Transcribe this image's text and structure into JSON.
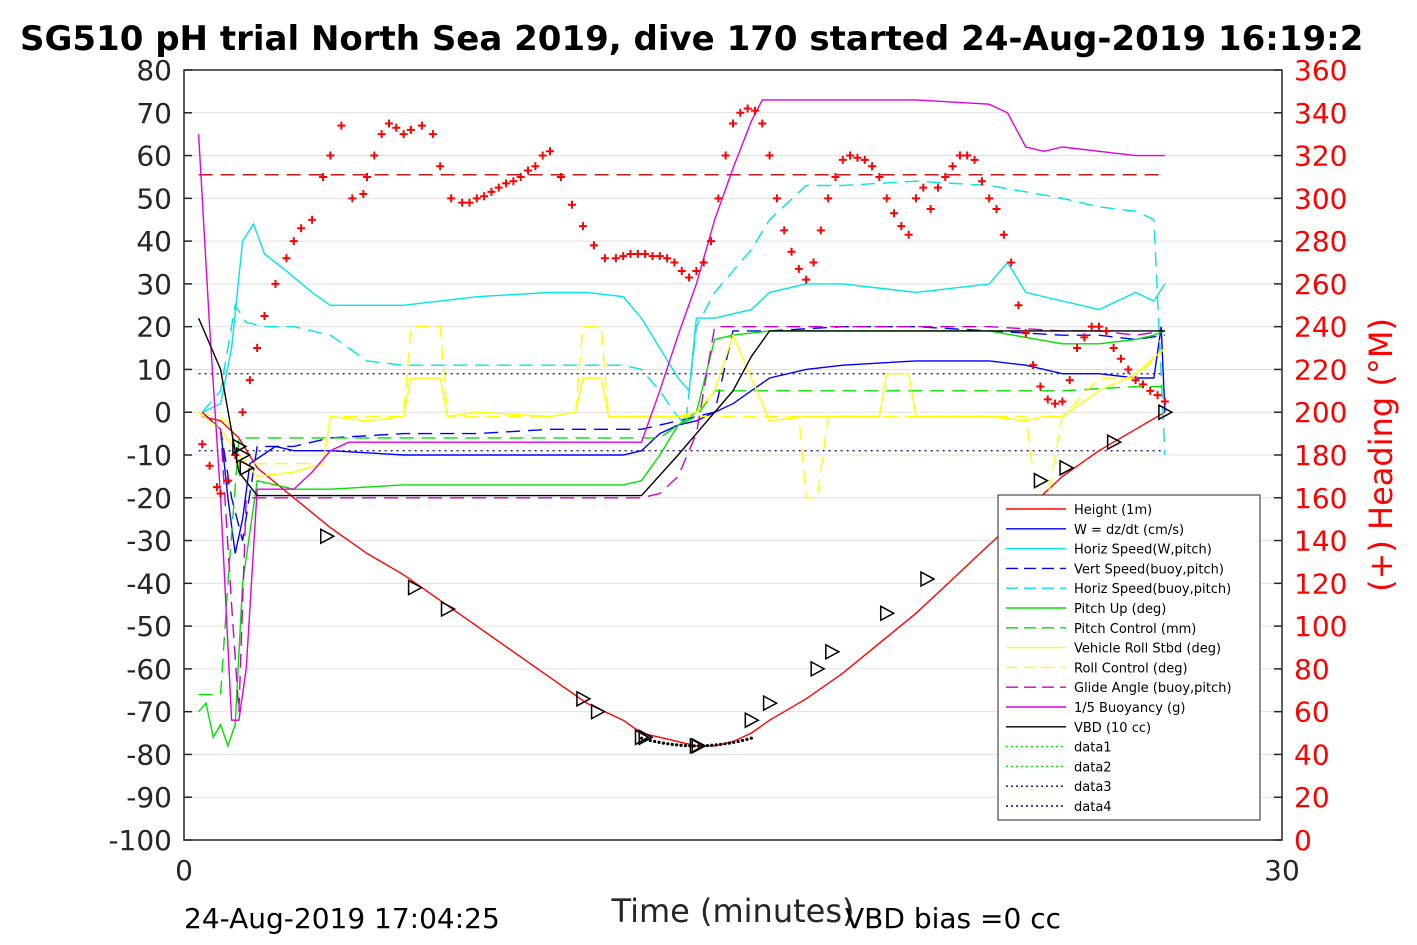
{
  "chart_data": {
    "type": "line",
    "title": "SG510 pH trial North Sea 2019, dive 170 started 24-Aug-2019 16:19:2",
    "xlabel": "Time (minutes)",
    "ylabel_right": "(+) Heading (°M)",
    "footer_left": "24-Aug-2019 17:04:25",
    "footer_right": "VBD bias =0 cc",
    "xlim": [
      0,
      30
    ],
    "ylim": [
      -100,
      80
    ],
    "ylim_right": [
      0,
      360
    ],
    "x_ticks": [
      "0",
      "30"
    ],
    "y_ticks": [
      "80",
      "70",
      "60",
      "50",
      "40",
      "30",
      "20",
      "10",
      "0",
      "-10",
      "-20",
      "-30",
      "-40",
      "-50",
      "-60",
      "-70",
      "-80",
      "-90",
      "-100"
    ],
    "y_ticks_right": [
      "360",
      "340",
      "320",
      "300",
      "280",
      "260",
      "240",
      "220",
      "200",
      "180",
      "160",
      "140",
      "120",
      "100",
      "80",
      "60",
      "40",
      "20",
      "0"
    ],
    "grid": true,
    "legend_position": "bottom-right",
    "series": [
      {
        "name": "Height (1m)",
        "color": "#ff0000",
        "style": "solid",
        "x": [
          0.5,
          1.0,
          1.5,
          2,
          3,
          4,
          5,
          6,
          7,
          8,
          9,
          10,
          11,
          12,
          12.5,
          13,
          13.5,
          14,
          14.5,
          15,
          15.5,
          16,
          17,
          18,
          19,
          20,
          21,
          22,
          23,
          24,
          25,
          26,
          26.8
        ],
        "y": [
          -1,
          -2,
          -6,
          -13,
          -20,
          -27,
          -33,
          -38,
          -44,
          -50,
          -56,
          -62,
          -68,
          -72,
          -75,
          -76,
          -77,
          -78,
          -78,
          -77,
          -75,
          -72,
          -67,
          -61,
          -54,
          -47,
          -39,
          -31,
          -23,
          -15,
          -9,
          -4,
          0
        ]
      },
      {
        "name": "W = dz/dt (cm/s)",
        "color": "#0000ff",
        "style": "solid",
        "x": [
          0.5,
          1.0,
          1.2,
          1.4,
          1.6,
          1.8,
          2.5,
          3,
          4,
          6,
          8,
          10,
          12,
          12.5,
          13,
          13.5,
          14,
          14.5,
          15,
          15.5,
          16,
          17,
          18,
          20,
          22,
          23,
          24,
          25,
          26,
          26.5,
          26.7,
          26.8
        ],
        "y": [
          0,
          -4,
          -20,
          -33,
          -25,
          -12,
          -8,
          -9,
          -9,
          -10,
          -10,
          -10,
          -10,
          -9,
          -5,
          -3,
          -2,
          0,
          2,
          5,
          8,
          10,
          11,
          12,
          12,
          11,
          9,
          9,
          8,
          8,
          20,
          0
        ]
      },
      {
        "name": "Horiz Speed(W,pitch)",
        "color": "#00e5e5",
        "style": "solid",
        "x": [
          0.5,
          1.0,
          1.3,
          1.6,
          1.9,
          2.2,
          2.8,
          3.5,
          4,
          5,
          6,
          8,
          10,
          11,
          12,
          12.5,
          13,
          13.5,
          13.8,
          14,
          14.5,
          15,
          15.5,
          16,
          17,
          18,
          20,
          22,
          22.5,
          23,
          24,
          25,
          26,
          26.5,
          26.8
        ],
        "y": [
          0,
          2,
          15,
          40,
          44,
          37,
          33,
          28,
          25,
          25,
          25,
          27,
          28,
          28,
          27,
          22,
          15,
          8,
          5,
          22,
          22,
          23,
          24,
          28,
          30,
          30,
          28,
          30,
          35,
          28,
          26,
          24,
          28,
          26,
          30
        ]
      },
      {
        "name": "Vert Speed(buoy,pitch)",
        "color": "#0000ff",
        "style": "dashed",
        "x": [
          0.5,
          1.0,
          1.3,
          1.6,
          2,
          3,
          4,
          6,
          8,
          10,
          12,
          12.5,
          13,
          13.5,
          14,
          14.5,
          15,
          16,
          18,
          20,
          22,
          24,
          25,
          26,
          26.8
        ],
        "y": [
          0,
          -4,
          -20,
          -30,
          -8,
          -8,
          -6,
          -5,
          -5,
          -4,
          -4,
          -4,
          -3,
          -2,
          -1,
          0,
          19,
          19,
          20,
          20,
          19,
          18,
          18,
          17,
          18
        ]
      },
      {
        "name": "Horiz Speed(buoy,pitch)",
        "color": "#00e5e5",
        "style": "dashed",
        "x": [
          0.5,
          1.0,
          1.4,
          1.7,
          2.2,
          3,
          4,
          5,
          6,
          8,
          10,
          12,
          12.5,
          13,
          13.4,
          13.7,
          14,
          14.5,
          15,
          15.5,
          16,
          17,
          18,
          20,
          22,
          24,
          25,
          26,
          26.5,
          26.8
        ],
        "y": [
          0,
          5,
          25,
          21,
          20,
          20,
          18,
          12,
          11,
          11,
          11,
          11,
          10,
          5,
          0,
          -3,
          20,
          28,
          33,
          38,
          45,
          53,
          53,
          54,
          53,
          50,
          48,
          47,
          45,
          -10
        ]
      },
      {
        "name": "Pitch Up (deg)",
        "color": "#00e000",
        "style": "solid",
        "x": [
          0.4,
          0.6,
          0.8,
          1.0,
          1.2,
          1.4,
          1.6,
          2,
          3,
          4,
          6,
          8,
          10,
          12,
          12.5,
          13,
          13.5,
          14,
          14.5,
          15,
          16,
          18,
          20,
          22,
          24,
          25,
          26,
          26.5,
          26.8
        ],
        "y": [
          -70,
          -68,
          -76,
          -73,
          -78,
          -73,
          -40,
          -16,
          -18,
          -18,
          -17,
          -17,
          -17,
          -17,
          -16,
          -10,
          -3,
          0,
          17,
          18,
          19,
          19,
          19,
          19,
          16,
          16,
          17,
          18,
          19
        ]
      },
      {
        "name": "Pitch Control (mm)",
        "color": "#00e000",
        "style": "dashed",
        "x": [
          0.4,
          1.0,
          1.2,
          1.5,
          2,
          4,
          6,
          8,
          10,
          12,
          13,
          13.5,
          14,
          14.5,
          15,
          16,
          18,
          20,
          22,
          24,
          26,
          26.8
        ],
        "y": [
          -66,
          -66,
          -40,
          -6,
          -6,
          -6,
          -6,
          -6,
          -6,
          -6,
          -6,
          -3,
          -1,
          5,
          5,
          5,
          5,
          5,
          5,
          5,
          6,
          6
        ]
      },
      {
        "name": "Vehicle Roll Stbd (deg)",
        "color": "#ffff00",
        "style": "solid",
        "x": [
          0.4,
          1.0,
          1.5,
          2,
          3,
          3.8,
          4.0,
          5,
          6,
          6.2,
          6.4,
          7,
          7.2,
          8,
          10,
          10.7,
          10.9,
          11.4,
          11.6,
          12,
          13,
          13.5,
          14,
          14.5,
          15,
          15.5,
          16,
          17,
          18,
          19,
          19.2,
          19.8,
          20,
          21,
          22,
          23,
          23.5,
          24,
          25,
          26,
          26.8
        ],
        "y": [
          0,
          -4,
          -10,
          -15,
          -14,
          -12,
          -1,
          -2,
          -1,
          8,
          8,
          8,
          -1,
          0,
          -1,
          0,
          8,
          8,
          -1,
          -1,
          -1,
          -1,
          0,
          5,
          18,
          8,
          -2,
          -1,
          -1,
          -1,
          9,
          9,
          -1,
          -1,
          -1,
          -2,
          -1,
          -1,
          5,
          9,
          15
        ]
      },
      {
        "name": "Roll Control (deg)",
        "color": "#ffff00",
        "style": "dashed",
        "x": [
          0.4,
          1.2,
          1.5,
          2,
          3,
          3.8,
          4.0,
          5,
          6,
          6.2,
          6.4,
          7,
          7.2,
          8,
          10,
          10.7,
          10.9,
          11.4,
          11.6,
          12,
          13,
          14,
          15,
          16,
          16.8,
          17,
          17.3,
          17.6,
          18,
          19,
          20,
          22,
          23,
          23.3,
          23.6,
          24,
          25,
          26,
          26.8
        ],
        "y": [
          0,
          -2,
          -12,
          -12,
          -12,
          -12,
          -1,
          -1,
          -1,
          20,
          20,
          20,
          -1,
          -1,
          -1,
          0,
          20,
          20,
          -1,
          -1,
          -1,
          -1,
          -1,
          -1,
          -1,
          -20,
          -20,
          -1,
          -1,
          -1,
          -1,
          -1,
          -1,
          -20,
          -20,
          -1,
          8,
          8,
          15
        ]
      },
      {
        "name": "Glide Angle (buoy,pitch)",
        "color": "#cc00cc",
        "style": "dashed",
        "x": [
          0.5,
          1.0,
          1.3,
          1.5,
          1.7,
          2,
          3,
          4,
          6,
          8,
          10,
          12,
          12.5,
          13,
          13.5,
          14,
          14.5,
          15,
          16,
          18,
          20,
          22,
          24,
          25,
          26,
          26.8
        ],
        "y": [
          0,
          -4,
          -45,
          -70,
          -20,
          -20,
          -20,
          -20,
          -20,
          -20,
          -20,
          -20,
          -20,
          -19,
          -15,
          -5,
          20,
          20,
          20,
          20,
          20,
          20,
          19,
          19,
          18,
          19
        ]
      },
      {
        "name": "1/5 Buoyancy (g)",
        "color": "#e000e0",
        "style": "solid",
        "x": [
          0.4,
          0.7,
          1.0,
          1.3,
          1.5,
          1.7,
          2,
          3,
          3.5,
          4,
          4.5,
          5,
          6,
          8,
          10,
          12,
          12.5,
          13,
          13.5,
          14,
          14.5,
          15,
          15.5,
          15.8,
          16,
          18,
          20,
          22,
          22.5,
          23,
          23.5,
          24,
          25,
          26,
          26.8
        ],
        "y": [
          65,
          20,
          -20,
          -72,
          -72,
          -60,
          -18,
          -18,
          -14,
          -9,
          -7,
          -7,
          -7,
          -7,
          -7,
          -7,
          -7,
          5,
          18,
          30,
          45,
          57,
          68,
          73,
          73,
          73,
          73,
          72,
          70,
          62,
          61,
          62,
          61,
          60,
          60
        ]
      },
      {
        "name": "VBD (10 cc)",
        "color": "#000000",
        "style": "solid",
        "x": [
          0.4,
          1.0,
          1.5,
          2,
          4,
          6,
          8,
          10,
          12,
          12.5,
          13.5,
          14,
          14.5,
          15,
          15.5,
          16,
          18,
          20,
          22,
          24,
          26,
          26.8
        ],
        "y": [
          22,
          10,
          -14,
          -19.5,
          -19.5,
          -19.5,
          -19.5,
          -19.5,
          -19.5,
          -19.5,
          -10,
          -5,
          0,
          5,
          13,
          19,
          19,
          19,
          19,
          19,
          19,
          19
        ]
      },
      {
        "name": "data1",
        "color": "#00e000",
        "style": "dotted",
        "x": [],
        "y": []
      },
      {
        "name": "data2",
        "color": "#00e000",
        "style": "dotted",
        "x": [],
        "y": []
      },
      {
        "name": "data3",
        "color": "#000080",
        "style": "dotted",
        "x": [],
        "y": []
      },
      {
        "name": "data4",
        "color": "#000080",
        "style": "dotted",
        "x": [],
        "y": []
      }
    ],
    "reference_lines": [
      {
        "axis": "right",
        "value": 311,
        "color": "#c00000",
        "style": "dashed"
      },
      {
        "axis": "left",
        "value": 9,
        "color": "#000080",
        "style": "dotted"
      },
      {
        "axis": "left",
        "value": -9,
        "color": "#000080",
        "style": "dotted"
      }
    ],
    "heading_points": {
      "color": "#ff0000",
      "x": [
        0.5,
        0.7,
        0.9,
        1.0,
        1.2,
        1.4,
        1.6,
        1.8,
        2.0,
        2.2,
        2.5,
        2.8,
        3.0,
        3.2,
        3.5,
        3.8,
        4.0,
        4.3,
        4.6,
        4.9,
        5.0,
        5.2,
        5.4,
        5.6,
        5.8,
        6.0,
        6.2,
        6.5,
        6.8,
        7.0,
        7.3,
        7.6,
        7.8,
        8.0,
        8.2,
        8.4,
        8.6,
        8.8,
        9.0,
        9.2,
        9.4,
        9.6,
        9.8,
        10.0,
        10.3,
        10.6,
        10.9,
        11.2,
        11.5,
        11.8,
        12.0,
        12.2,
        12.4,
        12.6,
        12.8,
        13.0,
        13.2,
        13.4,
        13.6,
        13.8,
        14.0,
        14.2,
        14.4,
        14.6,
        14.8,
        15.0,
        15.2,
        15.4,
        15.6,
        15.8,
        16.0,
        16.2,
        16.4,
        16.6,
        16.8,
        17.0,
        17.2,
        17.4,
        17.6,
        17.8,
        18.0,
        18.2,
        18.4,
        18.6,
        18.8,
        19.0,
        19.2,
        19.4,
        19.6,
        19.8,
        20.0,
        20.2,
        20.4,
        20.6,
        20.8,
        21.0,
        21.2,
        21.4,
        21.6,
        21.8,
        22.0,
        22.2,
        22.4,
        22.6,
        22.8,
        23.0,
        23.2,
        23.4,
        23.6,
        23.8,
        24.0,
        24.2,
        24.4,
        24.6,
        24.8,
        25.0,
        25.2,
        25.4,
        25.6,
        25.8,
        26.0,
        26.2,
        26.4,
        26.6,
        26.8
      ],
      "y": [
        185,
        175,
        165,
        162,
        168,
        180,
        200,
        215,
        230,
        245,
        260,
        272,
        280,
        286,
        290,
        310,
        320,
        334,
        300,
        302,
        310,
        320,
        330,
        335,
        333,
        330,
        332,
        334,
        330,
        315,
        300,
        298,
        298,
        300,
        301,
        303,
        305,
        307,
        308,
        310,
        313,
        315,
        320,
        322,
        310,
        297,
        287,
        278,
        272,
        272,
        273,
        274,
        274,
        274,
        273,
        273,
        272,
        270,
        266,
        263,
        266,
        270,
        280,
        300,
        320,
        335,
        340,
        342,
        341,
        335,
        320,
        300,
        285,
        275,
        267,
        262,
        270,
        285,
        300,
        310,
        318,
        320,
        319,
        318,
        315,
        310,
        300,
        293,
        287,
        283,
        300,
        305,
        295,
        305,
        310,
        315,
        320,
        320,
        318,
        308,
        300,
        295,
        283,
        270,
        250,
        237,
        222,
        212,
        206,
        204,
        205,
        215,
        230,
        235,
        240,
        240,
        238,
        230,
        225,
        220,
        215,
        213,
        210,
        208,
        205
      ]
    },
    "markers": {
      "style": "triangle-right",
      "x": [
        1.5,
        1.6,
        1.7,
        3.9,
        6.3,
        7.2,
        10.9,
        11.3,
        12.5,
        12.6,
        14.0,
        14.05,
        15.5,
        16.0,
        17.3,
        17.7,
        19.2,
        20.3,
        23.4,
        24.1,
        25.4,
        26.8
      ],
      "y": [
        -8,
        -10,
        -13,
        -29,
        -41,
        -46,
        -67,
        -70,
        -76,
        -76,
        -78,
        -78,
        -72,
        -68,
        -60,
        -56,
        -47,
        -39,
        -16,
        -13,
        -7,
        0
      ]
    }
  }
}
